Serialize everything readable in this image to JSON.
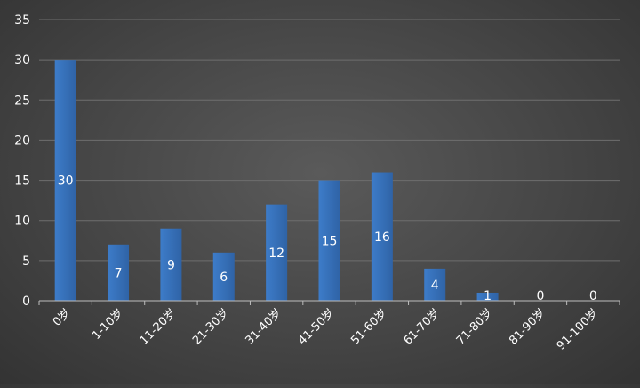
{
  "chart_data": {
    "type": "bar",
    "categories": [
      "0岁",
      "1-10岁",
      "11-20岁",
      "21-30岁",
      "31-40岁",
      "41-50岁",
      "51-60岁",
      "61-70岁",
      "71-80岁",
      "81-90岁",
      "91-100岁"
    ],
    "values": [
      30,
      7,
      9,
      6,
      12,
      15,
      16,
      4,
      1,
      0,
      0
    ],
    "data_labels": [
      "30",
      "7",
      "9",
      "6",
      "12",
      "15",
      "16",
      "4",
      "1",
      "0",
      "0"
    ],
    "y_ticks": [
      "0",
      "5",
      "10",
      "15",
      "20",
      "25",
      "30",
      "35"
    ],
    "ylim": [
      0,
      35
    ],
    "title": "",
    "xlabel": "",
    "ylabel": "",
    "grid": true,
    "legend": "none",
    "colors": {
      "bar": "#3d7cc9",
      "bar_dark": "#2f63a6",
      "grid": "#6e6e6e",
      "axis": "#bdbdbd",
      "text": "#ffffff"
    }
  }
}
